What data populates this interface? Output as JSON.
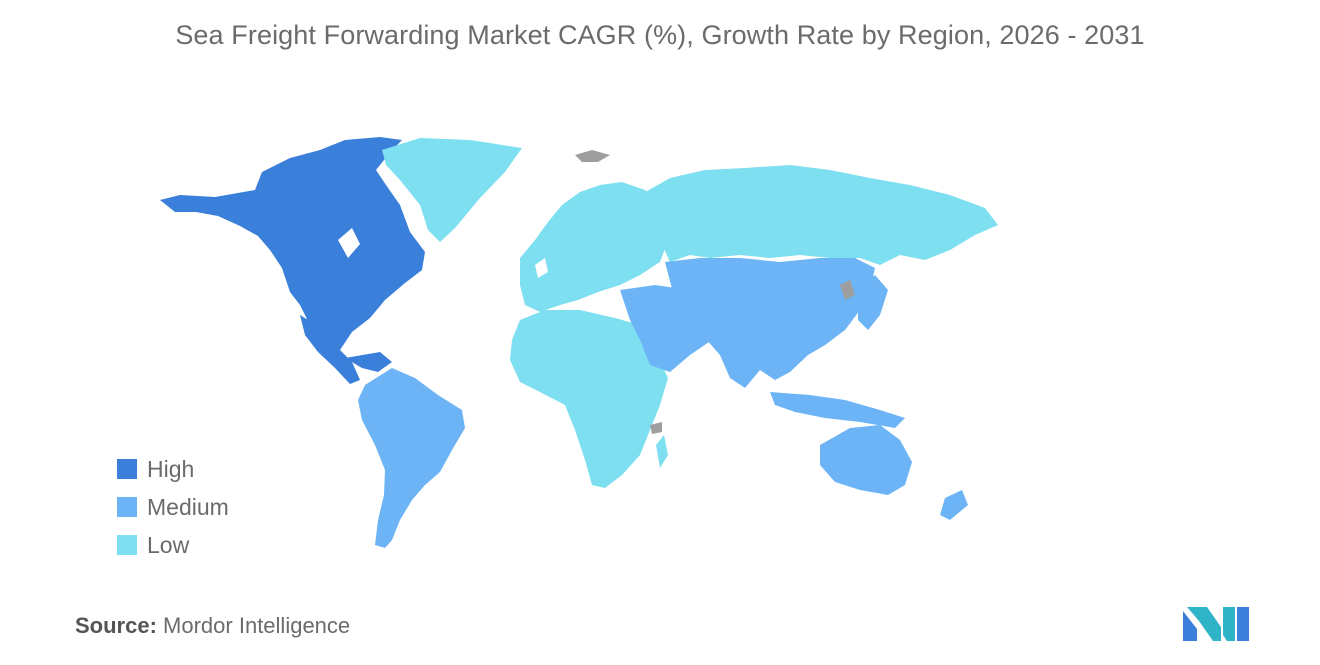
{
  "title": "Sea Freight Forwarding Market CAGR (%), Growth Rate by Region, 2026 - 2031",
  "legend": [
    {
      "label": "High",
      "color": "#3a7fd9"
    },
    {
      "label": "Medium",
      "color": "#6cb4f5"
    },
    {
      "label": "Low",
      "color": "#7ddff0"
    }
  ],
  "no_data_color": "#9e9e9e",
  "regions": [
    {
      "name": "North America",
      "level": "High"
    },
    {
      "name": "South America",
      "level": "Medium"
    },
    {
      "name": "Asia-Pacific",
      "level": "Medium"
    },
    {
      "name": "Middle East",
      "level": "Medium"
    },
    {
      "name": "Europe",
      "level": "Low"
    },
    {
      "name": "Russia",
      "level": "Low"
    },
    {
      "name": "Africa",
      "level": "Low"
    },
    {
      "name": "Greenland",
      "level": "Low"
    }
  ],
  "source": {
    "label": "Source:",
    "value": "Mordor Intelligence"
  },
  "logo": {
    "icon": "mordor-intelligence-logo-icon"
  }
}
